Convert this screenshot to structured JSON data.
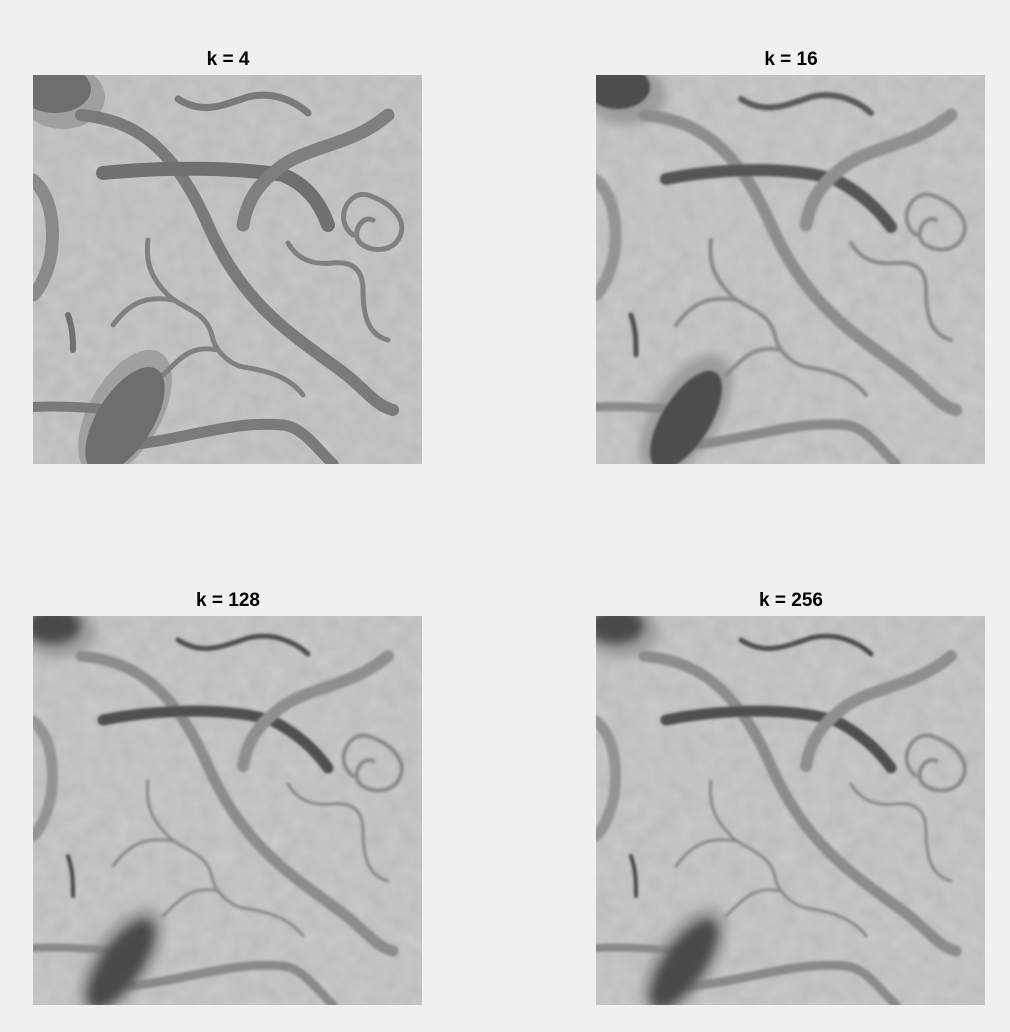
{
  "figure": {
    "panels": [
      {
        "title": "k = 4",
        "level": "k4",
        "image_name": "quantized-image-k4"
      },
      {
        "title": "k = 16",
        "level": "k16",
        "image_name": "quantized-image-k16"
      },
      {
        "title": "k = 128",
        "level": "k128",
        "image_name": "quantized-image-k128"
      },
      {
        "title": "k = 256",
        "level": "k256",
        "image_name": "quantized-image-k256"
      }
    ]
  },
  "colors": {
    "figure_background": "#f0f0f0",
    "image_background": "#c8c8c8",
    "vessel_light": "#8e8e8e",
    "vessel_dark": "#555555",
    "blob_dark": "#505050"
  }
}
